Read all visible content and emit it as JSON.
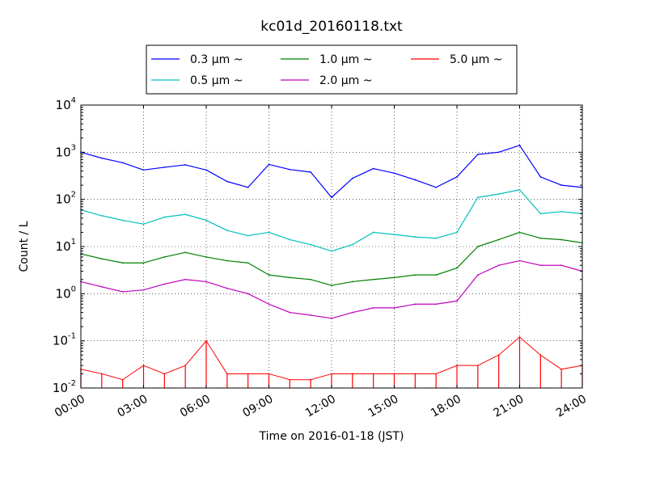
{
  "chart_data": {
    "type": "line",
    "title": "kc01d_20160118.txt",
    "xlabel": "Time on 2016-01-18 (JST)",
    "ylabel": "Count / L",
    "y_scale": "log",
    "ylim": [
      0.01,
      10000
    ],
    "xlim": [
      "00:00",
      "24:00"
    ],
    "x_ticks": [
      "00:00",
      "03:00",
      "06:00",
      "09:00",
      "12:00",
      "15:00",
      "18:00",
      "21:00",
      "24:00"
    ],
    "y_ticks": [
      {
        "base": "10",
        "exp": "-2",
        "value": 0.01
      },
      {
        "base": "10",
        "exp": "-1",
        "value": 0.1
      },
      {
        "base": "10",
        "exp": "0",
        "value": 1
      },
      {
        "base": "10",
        "exp": "1",
        "value": 10
      },
      {
        "base": "10",
        "exp": "2",
        "value": 100
      },
      {
        "base": "10",
        "exp": "3",
        "value": 1000
      },
      {
        "base": "10",
        "exp": "4",
        "value": 10000
      }
    ],
    "grid": true,
    "legend_position": "top-center",
    "x": [
      "00:00",
      "01:00",
      "02:00",
      "03:00",
      "04:00",
      "05:00",
      "06:00",
      "07:00",
      "08:00",
      "09:00",
      "10:00",
      "11:00",
      "12:00",
      "13:00",
      "14:00",
      "15:00",
      "16:00",
      "17:00",
      "18:00",
      "19:00",
      "20:00",
      "21:00",
      "22:00",
      "23:00",
      "24:00"
    ],
    "series": [
      {
        "name": "0.3 μm ~",
        "color": "#0000ff",
        "values": [
          1000,
          750,
          600,
          420,
          480,
          540,
          420,
          240,
          180,
          550,
          430,
          380,
          110,
          280,
          450,
          360,
          260,
          180,
          300,
          900,
          1000,
          1400,
          300,
          200,
          180
        ]
      },
      {
        "name": "0.5 μm ~",
        "color": "#00bfbf",
        "values": [
          60,
          45,
          36,
          30,
          42,
          48,
          36,
          22,
          17,
          20,
          14,
          11,
          8,
          11,
          20,
          18,
          16,
          15,
          20,
          110,
          130,
          160,
          50,
          55,
          50
        ]
      },
      {
        "name": "1.0 μm ~",
        "color": "#008000",
        "values": [
          7,
          5.5,
          4.5,
          4.5,
          6,
          7.5,
          6,
          5,
          4.5,
          2.5,
          2.2,
          2,
          1.5,
          1.8,
          2,
          2.2,
          2.5,
          2.5,
          3.5,
          10,
          14,
          20,
          15,
          14,
          12
        ]
      },
      {
        "name": "2.0 μm ~",
        "color": "#bf00bf",
        "values": [
          1.8,
          1.4,
          1.1,
          1.2,
          1.6,
          2,
          1.8,
          1.3,
          1,
          0.6,
          0.4,
          0.35,
          0.3,
          0.4,
          0.5,
          0.5,
          0.6,
          0.6,
          0.7,
          2.5,
          4,
          5,
          4,
          4,
          3
        ]
      },
      {
        "name": "5.0 μm ~",
        "color": "#ff0000",
        "values": [
          0.025,
          0.02,
          0.015,
          0.03,
          0.02,
          0.03,
          0.1,
          0.02,
          0.02,
          0.02,
          0.015,
          0.015,
          0.02,
          0.02,
          0.02,
          0.02,
          0.02,
          0.02,
          0.03,
          0.03,
          0.05,
          0.12,
          0.05,
          0.025,
          0.03
        ]
      }
    ]
  }
}
